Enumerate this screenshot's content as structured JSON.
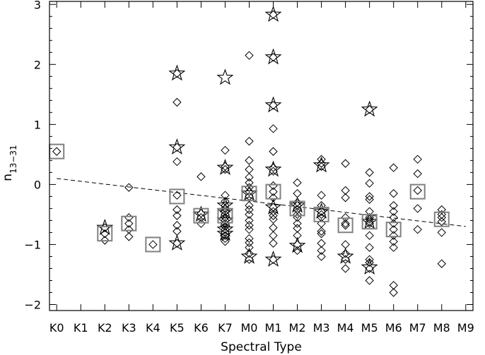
{
  "chart_data": {
    "type": "scatter",
    "title": "",
    "xlabel": "Spectral Type",
    "ylabel_main": "n",
    "ylabel_sub": "13−31",
    "x_categories": [
      "K0",
      "K1",
      "K2",
      "K3",
      "K4",
      "K5",
      "K6",
      "K7",
      "M0",
      "M1",
      "M2",
      "M3",
      "M4",
      "M5",
      "M6",
      "M7",
      "M8",
      "M9"
    ],
    "xlim": [
      -0.3,
      17.3
    ],
    "ylim": [
      -2.1,
      3.05
    ],
    "y_ticks": [
      -2,
      -1,
      0,
      1,
      2,
      3
    ],
    "y_tick_labels": [
      "−2",
      "−1",
      "0",
      "1",
      "2",
      "3"
    ],
    "grid": false,
    "legend": false,
    "series": [
      {
        "marker": "diamond",
        "points": [
          {
            "x": 0,
            "y": 0.55
          },
          {
            "x": 2,
            "y": -0.72
          },
          {
            "x": 2,
            "y": -0.82
          },
          {
            "x": 2,
            "y": -0.93
          },
          {
            "x": 3,
            "y": -0.05
          },
          {
            "x": 3,
            "y": -0.55
          },
          {
            "x": 3,
            "y": -0.65
          },
          {
            "x": 3,
            "y": -0.75
          },
          {
            "x": 3,
            "y": -0.87
          },
          {
            "x": 4,
            "y": -1.0
          },
          {
            "x": 5,
            "y": 1.85
          },
          {
            "x": 5,
            "y": 1.37
          },
          {
            "x": 5,
            "y": 0.62
          },
          {
            "x": 5,
            "y": 0.38
          },
          {
            "x": 5,
            "y": -0.18
          },
          {
            "x": 5,
            "y": -0.42
          },
          {
            "x": 5,
            "y": -0.52
          },
          {
            "x": 5,
            "y": -0.68
          },
          {
            "x": 5,
            "y": -0.78
          },
          {
            "x": 5,
            "y": -0.98
          },
          {
            "x": 6,
            "y": 0.13
          },
          {
            "x": 6,
            "y": -0.48
          },
          {
            "x": 6,
            "y": -0.55
          },
          {
            "x": 6,
            "y": -0.65
          },
          {
            "x": 7,
            "y": 0.57
          },
          {
            "x": 7,
            "y": 0.3
          },
          {
            "x": 7,
            "y": 0.25
          },
          {
            "x": 7,
            "y": -0.18
          },
          {
            "x": 7,
            "y": -0.28
          },
          {
            "x": 7,
            "y": -0.35
          },
          {
            "x": 7,
            "y": -0.4
          },
          {
            "x": 7,
            "y": -0.45
          },
          {
            "x": 7,
            "y": -0.5
          },
          {
            "x": 7,
            "y": -0.55
          },
          {
            "x": 7,
            "y": -0.6
          },
          {
            "x": 7,
            "y": -0.65
          },
          {
            "x": 7,
            "y": -0.7
          },
          {
            "x": 7,
            "y": -0.75
          },
          {
            "x": 7,
            "y": -0.8
          },
          {
            "x": 7,
            "y": -0.85
          },
          {
            "x": 7,
            "y": -0.9
          },
          {
            "x": 7,
            "y": -0.95
          },
          {
            "x": 8,
            "y": 2.15
          },
          {
            "x": 8,
            "y": 0.72
          },
          {
            "x": 8,
            "y": 0.4
          },
          {
            "x": 8,
            "y": 0.25
          },
          {
            "x": 8,
            "y": 0.12
          },
          {
            "x": 8,
            "y": 0.03
          },
          {
            "x": 8,
            "y": -0.05
          },
          {
            "x": 8,
            "y": -0.12
          },
          {
            "x": 8,
            "y": -0.2
          },
          {
            "x": 8,
            "y": -0.35
          },
          {
            "x": 8,
            "y": -0.42
          },
          {
            "x": 8,
            "y": -0.5
          },
          {
            "x": 8,
            "y": -0.6
          },
          {
            "x": 8,
            "y": -0.68
          },
          {
            "x": 8,
            "y": -0.75
          },
          {
            "x": 8,
            "y": -0.9
          },
          {
            "x": 8,
            "y": -0.97
          },
          {
            "x": 8,
            "y": -1.05
          },
          {
            "x": 8,
            "y": -1.15
          },
          {
            "x": 8,
            "y": -1.25
          },
          {
            "x": 9,
            "y": 2.83
          },
          {
            "x": 9,
            "y": 2.12
          },
          {
            "x": 9,
            "y": 1.32
          },
          {
            "x": 9,
            "y": 0.93
          },
          {
            "x": 9,
            "y": 0.55
          },
          {
            "x": 9,
            "y": 0.28
          },
          {
            "x": 9,
            "y": 0.22
          },
          {
            "x": 9,
            "y": -0.02
          },
          {
            "x": 9,
            "y": -0.12
          },
          {
            "x": 9,
            "y": -0.22
          },
          {
            "x": 9,
            "y": -0.38
          },
          {
            "x": 9,
            "y": -0.45
          },
          {
            "x": 9,
            "y": -0.52
          },
          {
            "x": 9,
            "y": -0.58
          },
          {
            "x": 9,
            "y": -0.72
          },
          {
            "x": 9,
            "y": -0.85
          },
          {
            "x": 9,
            "y": -0.98
          },
          {
            "x": 9,
            "y": -1.25
          },
          {
            "x": 10,
            "y": 0.03
          },
          {
            "x": 10,
            "y": -0.15
          },
          {
            "x": 10,
            "y": -0.3
          },
          {
            "x": 10,
            "y": -0.35
          },
          {
            "x": 10,
            "y": -0.42
          },
          {
            "x": 10,
            "y": -0.5
          },
          {
            "x": 10,
            "y": -0.55
          },
          {
            "x": 10,
            "y": -0.65
          },
          {
            "x": 10,
            "y": -0.73
          },
          {
            "x": 10,
            "y": -0.85
          },
          {
            "x": 10,
            "y": -1.0
          },
          {
            "x": 10,
            "y": -1.1
          },
          {
            "x": 11,
            "y": 0.42
          },
          {
            "x": 11,
            "y": 0.35
          },
          {
            "x": 11,
            "y": 0.3
          },
          {
            "x": 11,
            "y": -0.18
          },
          {
            "x": 11,
            "y": -0.35
          },
          {
            "x": 11,
            "y": -0.45
          },
          {
            "x": 11,
            "y": -0.5
          },
          {
            "x": 11,
            "y": -0.55
          },
          {
            "x": 11,
            "y": -0.65
          },
          {
            "x": 11,
            "y": -0.78
          },
          {
            "x": 11,
            "y": -0.82
          },
          {
            "x": 11,
            "y": -0.98
          },
          {
            "x": 11,
            "y": -1.1
          },
          {
            "x": 11,
            "y": -1.2
          },
          {
            "x": 12,
            "y": 0.35
          },
          {
            "x": 12,
            "y": -0.1
          },
          {
            "x": 12,
            "y": -0.22
          },
          {
            "x": 12,
            "y": -0.55
          },
          {
            "x": 12,
            "y": -0.65
          },
          {
            "x": 12,
            "y": -0.68
          },
          {
            "x": 12,
            "y": -1.0
          },
          {
            "x": 12,
            "y": -1.15
          },
          {
            "x": 12,
            "y": -1.25
          },
          {
            "x": 12,
            "y": -1.4
          },
          {
            "x": 13,
            "y": 1.25
          },
          {
            "x": 13,
            "y": 0.2
          },
          {
            "x": 13,
            "y": 0.02
          },
          {
            "x": 13,
            "y": -0.2
          },
          {
            "x": 13,
            "y": -0.25
          },
          {
            "x": 13,
            "y": -0.45
          },
          {
            "x": 13,
            "y": -0.55
          },
          {
            "x": 13,
            "y": -0.58
          },
          {
            "x": 13,
            "y": -0.62
          },
          {
            "x": 13,
            "y": -0.65
          },
          {
            "x": 13,
            "y": -0.85
          },
          {
            "x": 13,
            "y": -1.05
          },
          {
            "x": 13,
            "y": -1.25
          },
          {
            "x": 13,
            "y": -1.3
          },
          {
            "x": 13,
            "y": -1.4
          },
          {
            "x": 13,
            "y": -1.6
          },
          {
            "x": 14,
            "y": 0.28
          },
          {
            "x": 14,
            "y": -0.15
          },
          {
            "x": 14,
            "y": -0.35
          },
          {
            "x": 14,
            "y": -0.45
          },
          {
            "x": 14,
            "y": -0.55
          },
          {
            "x": 14,
            "y": -0.65
          },
          {
            "x": 14,
            "y": -0.75
          },
          {
            "x": 14,
            "y": -0.85
          },
          {
            "x": 14,
            "y": -0.95
          },
          {
            "x": 14,
            "y": -1.05
          },
          {
            "x": 14,
            "y": -1.68
          },
          {
            "x": 14,
            "y": -1.8
          },
          {
            "x": 15,
            "y": 0.42
          },
          {
            "x": 15,
            "y": 0.18
          },
          {
            "x": 15,
            "y": -0.1
          },
          {
            "x": 15,
            "y": -0.4
          },
          {
            "x": 15,
            "y": -0.75
          },
          {
            "x": 16,
            "y": -0.42
          },
          {
            "x": 16,
            "y": -0.5
          },
          {
            "x": 16,
            "y": -0.55
          },
          {
            "x": 16,
            "y": -0.62
          },
          {
            "x": 16,
            "y": -0.8
          },
          {
            "x": 16,
            "y": -1.32
          }
        ]
      },
      {
        "marker": "star",
        "points": [
          {
            "x": 2,
            "y": -0.72
          },
          {
            "x": 5,
            "y": 1.85
          },
          {
            "x": 5,
            "y": 0.62
          },
          {
            "x": 5,
            "y": -0.98
          },
          {
            "x": 6,
            "y": -0.5
          },
          {
            "x": 7,
            "y": 1.78
          },
          {
            "x": 7,
            "y": 0.28
          },
          {
            "x": 7,
            "y": -0.35
          },
          {
            "x": 7,
            "y": -0.45
          },
          {
            "x": 7,
            "y": -0.6
          },
          {
            "x": 7,
            "y": -0.75
          },
          {
            "x": 7,
            "y": -0.82
          },
          {
            "x": 8,
            "y": -0.15
          },
          {
            "x": 8,
            "y": -1.2
          },
          {
            "x": 9,
            "y": 2.83
          },
          {
            "x": 9,
            "y": 2.12
          },
          {
            "x": 9,
            "y": 1.32
          },
          {
            "x": 9,
            "y": 0.25
          },
          {
            "x": 9,
            "y": -0.38
          },
          {
            "x": 9,
            "y": -1.25
          },
          {
            "x": 10,
            "y": -0.35
          },
          {
            "x": 10,
            "y": -1.02
          },
          {
            "x": 11,
            "y": 0.32
          },
          {
            "x": 11,
            "y": -0.45
          },
          {
            "x": 12,
            "y": -1.2
          },
          {
            "x": 13,
            "y": 1.25
          },
          {
            "x": 13,
            "y": -0.62
          },
          {
            "x": 13,
            "y": -1.38
          }
        ]
      },
      {
        "marker": "square",
        "points": [
          {
            "x": 0,
            "y": 0.55
          },
          {
            "x": 2,
            "y": -0.82
          },
          {
            "x": 3,
            "y": -0.65
          },
          {
            "x": 4,
            "y": -1.0
          },
          {
            "x": 5,
            "y": -0.2
          },
          {
            "x": 6,
            "y": -0.52
          },
          {
            "x": 7,
            "y": -0.52
          },
          {
            "x": 8,
            "y": -0.15
          },
          {
            "x": 9,
            "y": -0.12
          },
          {
            "x": 10,
            "y": -0.4
          },
          {
            "x": 11,
            "y": -0.5
          },
          {
            "x": 12,
            "y": -0.68
          },
          {
            "x": 13,
            "y": -0.62
          },
          {
            "x": 14,
            "y": -0.75
          },
          {
            "x": 15,
            "y": -0.12
          },
          {
            "x": 16,
            "y": -0.58
          }
        ]
      }
    ],
    "fit_line": {
      "style": "dashed",
      "x": [
        0,
        17
      ],
      "y": [
        0.1,
        -0.7
      ]
    }
  }
}
